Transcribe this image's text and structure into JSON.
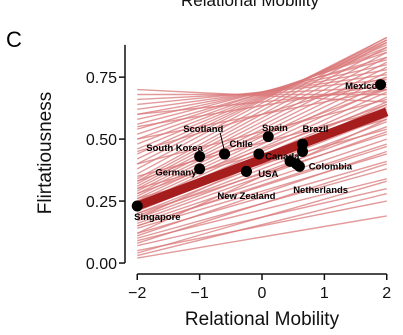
{
  "panel_letter": "C",
  "top_title": "Relational Mobility",
  "chart_data": {
    "type": "scatter",
    "xlabel": "Relational Mobility",
    "ylabel": "Flirtatiousness",
    "xlim": [
      -2.1,
      2.1
    ],
    "ylim": [
      -0.02,
      0.92
    ],
    "xticks": [
      -2,
      -1,
      0,
      1,
      2
    ],
    "xtick_labels": [
      "−2",
      "−1",
      "0",
      "1",
      "2"
    ],
    "yticks": [
      0.0,
      0.25,
      0.5,
      0.75
    ],
    "ytick_labels": [
      "0.00",
      "0.25",
      "0.50",
      "0.75"
    ],
    "grid": false,
    "mean_line": {
      "x": [
        -2,
        2
      ],
      "y": [
        0.23,
        0.61
      ],
      "color": "#a51d1d"
    },
    "posterior_lines": {
      "color": "#d9787a",
      "lines": [
        [
          0.02,
          0.19
        ],
        [
          0.05,
          0.25
        ],
        [
          0.07,
          0.3
        ],
        [
          0.09,
          0.34
        ],
        [
          0.1,
          0.38
        ],
        [
          0.12,
          0.41
        ],
        [
          0.14,
          0.44
        ],
        [
          0.15,
          0.47
        ],
        [
          0.16,
          0.5
        ],
        [
          0.17,
          0.53
        ],
        [
          0.18,
          0.55
        ],
        [
          0.19,
          0.57
        ],
        [
          0.2,
          0.59
        ],
        [
          0.21,
          0.61
        ],
        [
          0.22,
          0.63
        ],
        [
          0.22,
          0.65
        ],
        [
          0.23,
          0.67
        ],
        [
          0.24,
          0.69
        ],
        [
          0.25,
          0.71
        ],
        [
          0.26,
          0.73
        ],
        [
          0.27,
          0.75
        ],
        [
          0.28,
          0.77
        ],
        [
          0.29,
          0.79
        ],
        [
          0.3,
          0.81
        ],
        [
          0.31,
          0.83
        ],
        [
          0.32,
          0.85
        ],
        [
          0.33,
          0.87
        ],
        [
          0.34,
          0.89
        ],
        [
          0.36,
          0.9
        ],
        [
          0.38,
          0.91
        ],
        [
          0.4,
          0.91
        ],
        [
          0.42,
          0.9
        ],
        [
          0.44,
          0.89
        ],
        [
          0.46,
          0.88
        ],
        [
          0.48,
          0.87
        ],
        [
          0.5,
          0.86
        ],
        [
          0.52,
          0.85
        ],
        [
          0.54,
          0.83
        ],
        [
          0.56,
          0.82
        ],
        [
          0.58,
          0.8
        ],
        [
          0.6,
          0.78
        ],
        [
          0.62,
          0.76
        ],
        [
          0.64,
          0.74
        ],
        [
          0.66,
          0.71
        ],
        [
          0.68,
          0.68
        ],
        [
          0.7,
          0.65
        ],
        [
          0.35,
          0.62
        ],
        [
          0.3,
          0.58
        ],
        [
          0.26,
          0.54
        ],
        [
          0.2,
          0.52
        ],
        [
          0.15,
          0.48
        ],
        [
          0.11,
          0.45
        ],
        [
          0.08,
          0.4
        ],
        [
          0.04,
          0.33
        ],
        [
          0.03,
          0.28
        ],
        [
          0.45,
          0.75
        ],
        [
          0.5,
          0.7
        ],
        [
          0.4,
          0.66
        ],
        [
          0.55,
          0.72
        ],
        [
          0.6,
          0.7
        ],
        [
          0.25,
          0.6
        ],
        [
          0.18,
          0.64
        ],
        [
          0.12,
          0.58
        ],
        [
          0.33,
          0.7
        ],
        [
          0.28,
          0.64
        ]
      ]
    },
    "points": [
      {
        "label": "Singapore",
        "x": -2.0,
        "y": 0.23,
        "lx": -2.05,
        "ly": 0.185,
        "anchor": "start"
      },
      {
        "label": "Germany",
        "x": -1.0,
        "y": 0.38,
        "lx": -1.05,
        "ly": 0.365,
        "anchor": "end"
      },
      {
        "label": "South Korea",
        "x": -1.0,
        "y": 0.43,
        "lx": -0.95,
        "ly": 0.465,
        "anchor": "end"
      },
      {
        "label": "Scotland",
        "x": -0.6,
        "y": 0.44,
        "lx": -0.62,
        "ly": 0.54,
        "anchor": "end"
      },
      {
        "label": "Chile",
        "x": -0.6,
        "y": 0.44,
        "lx": -0.52,
        "ly": 0.48,
        "anchor": "start"
      },
      {
        "label": "New Zealand",
        "x": -0.25,
        "y": 0.37,
        "lx": -0.25,
        "ly": 0.27,
        "anchor": "middle"
      },
      {
        "label": "USA",
        "x": -0.25,
        "y": 0.37,
        "lx": -0.06,
        "ly": 0.36,
        "anchor": "start"
      },
      {
        "label": "Canada",
        "x": -0.05,
        "y": 0.44,
        "lx": 0.05,
        "ly": 0.43,
        "anchor": "start"
      },
      {
        "label": "Spain",
        "x": 0.1,
        "y": 0.51,
        "lx": 0.0,
        "ly": 0.545,
        "anchor": "start"
      },
      {
        "label": "Brazil",
        "x": 0.65,
        "y": 0.48,
        "lx": 0.65,
        "ly": 0.54,
        "anchor": "start"
      },
      {
        "label": "Colombia",
        "x": 0.45,
        "y": 0.41,
        "lx": 0.75,
        "ly": 0.39,
        "anchor": "start"
      },
      {
        "label": "Netherlands",
        "x": 0.6,
        "y": 0.39,
        "lx": 0.5,
        "ly": 0.295,
        "anchor": "start"
      },
      {
        "label": "Mexico",
        "x": 1.9,
        "y": 0.72,
        "lx": 1.85,
        "ly": 0.715,
        "anchor": "end"
      }
    ],
    "extra_points": [
      {
        "x": 0.55,
        "y": 0.4
      },
      {
        "x": 0.65,
        "y": 0.45
      }
    ]
  }
}
